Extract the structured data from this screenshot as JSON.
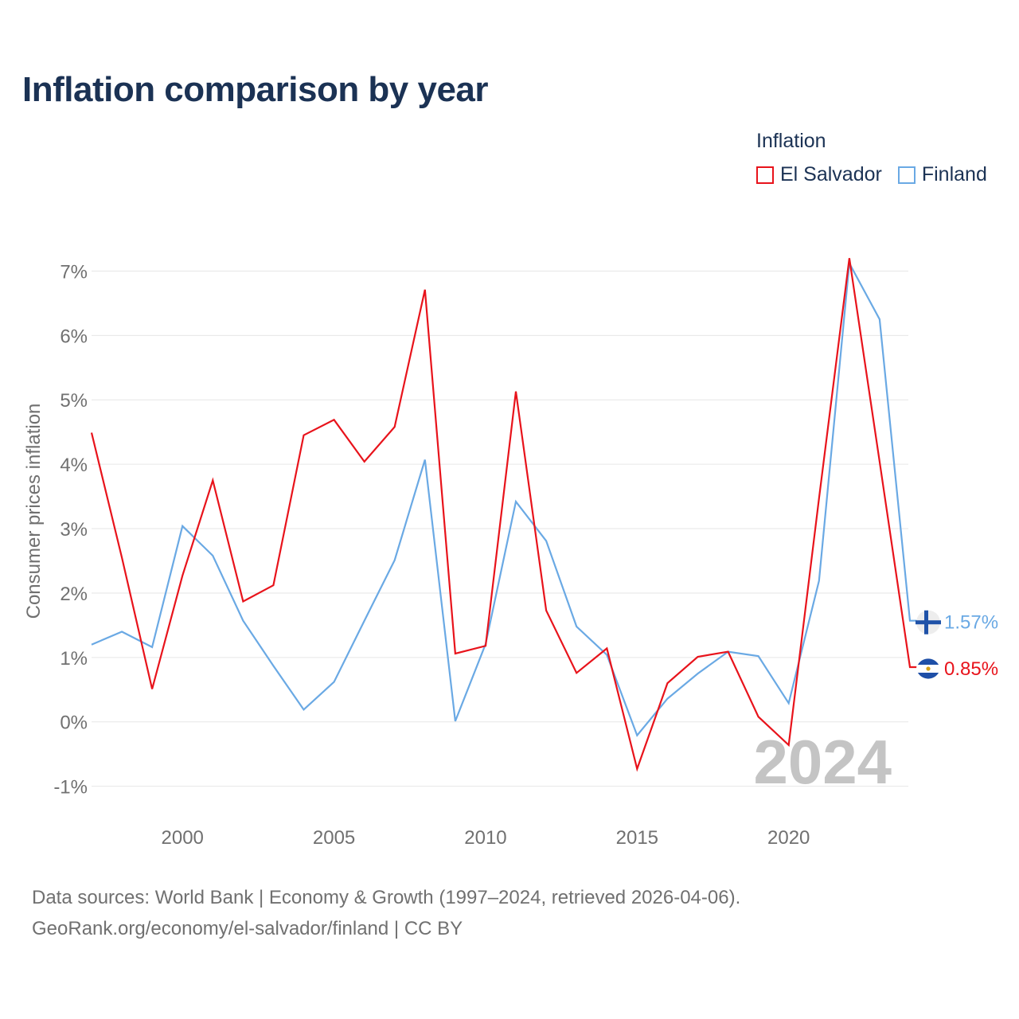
{
  "title": "Inflation comparison by year",
  "legend": {
    "title": "Inflation",
    "items": [
      {
        "label": "El Salvador",
        "color": "#e8131b"
      },
      {
        "label": "Finland",
        "color": "#6aa9e4"
      }
    ]
  },
  "sources": {
    "line1": "Data sources: World Bank | Economy & Growth (1997–2024, retrieved 2026-04-06).",
    "line2": "GeoRank.org/economy/el-salvador/finland | CC BY"
  },
  "chart_data": {
    "type": "line",
    "ylabel": "Consumer prices inflation",
    "xlabel": "",
    "watermark": "2024",
    "x": [
      1997,
      1998,
      1999,
      2000,
      2001,
      2002,
      2003,
      2004,
      2005,
      2006,
      2007,
      2008,
      2009,
      2010,
      2011,
      2012,
      2013,
      2014,
      2015,
      2016,
      2017,
      2018,
      2019,
      2020,
      2021,
      2022,
      2023,
      2024
    ],
    "xlim": [
      1997,
      2024
    ],
    "ylim": [
      -1.4,
      7.5
    ],
    "x_ticks": [
      2000,
      2005,
      2010,
      2015,
      2020
    ],
    "x_tick_labels": [
      "2000",
      "2005",
      "2010",
      "2015",
      "2020"
    ],
    "y_ticks": [
      -1,
      0,
      1,
      2,
      3,
      4,
      5,
      6,
      7
    ],
    "y_tick_labels": [
      "-1%",
      "0%",
      "1%",
      "2%",
      "3%",
      "4%",
      "5%",
      "6%",
      "7%"
    ],
    "grid": true,
    "legend_position": "top-right",
    "series": [
      {
        "name": "El Salvador",
        "color": "#e8131b",
        "values": [
          4.49,
          2.55,
          0.51,
          2.27,
          3.75,
          1.87,
          2.12,
          4.45,
          4.69,
          4.04,
          4.58,
          6.71,
          1.06,
          1.18,
          5.13,
          1.73,
          0.76,
          1.14,
          -0.73,
          0.6,
          1.01,
          1.09,
          0.08,
          -0.36,
          3.47,
          7.2,
          4.04,
          0.85
        ],
        "end_label": "0.85%",
        "flag_icon": "el-salvador-flag-icon"
      },
      {
        "name": "Finland",
        "color": "#6aa9e4",
        "values": [
          1.2,
          1.4,
          1.16,
          3.04,
          2.58,
          1.57,
          0.87,
          0.19,
          0.62,
          1.57,
          2.51,
          4.07,
          0.01,
          1.21,
          3.42,
          2.81,
          1.48,
          1.04,
          -0.21,
          0.36,
          0.75,
          1.09,
          1.02,
          0.29,
          2.19,
          7.12,
          6.25,
          1.57
        ],
        "end_label": "1.57%",
        "flag_icon": "finland-flag-icon"
      }
    ]
  }
}
